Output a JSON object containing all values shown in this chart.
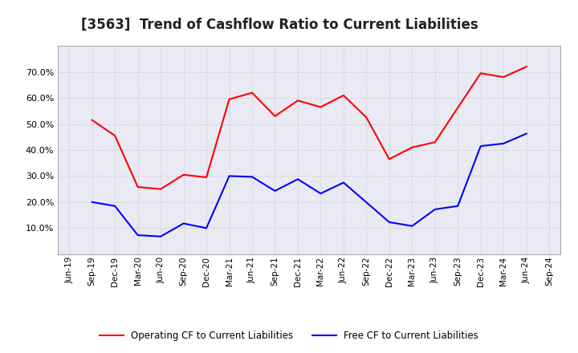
{
  "title": "[3563]  Trend of Cashflow Ratio to Current Liabilities",
  "title_fontsize": 12,
  "x_labels": [
    "Jun-19",
    "Sep-19",
    "Dec-19",
    "Mar-20",
    "Jun-20",
    "Sep-20",
    "Dec-20",
    "Mar-21",
    "Jun-21",
    "Sep-21",
    "Dec-21",
    "Mar-22",
    "Jun-22",
    "Sep-22",
    "Dec-22",
    "Mar-23",
    "Jun-23",
    "Sep-23",
    "Dec-23",
    "Mar-24",
    "Jun-24",
    "Sep-24"
  ],
  "operating_cf": [
    null,
    0.515,
    0.455,
    0.258,
    0.25,
    0.305,
    0.295,
    0.595,
    0.62,
    0.53,
    0.59,
    0.565,
    0.61,
    0.525,
    0.365,
    0.41,
    0.43,
    null,
    0.695,
    0.68,
    0.72,
    null
  ],
  "free_cf": [
    null,
    0.2,
    0.185,
    0.073,
    0.068,
    0.118,
    0.1,
    0.3,
    0.297,
    0.243,
    0.288,
    0.233,
    0.275,
    null,
    0.123,
    0.108,
    0.172,
    0.185,
    0.415,
    0.425,
    0.463,
    null
  ],
  "operating_color": "#FF0000",
  "free_color": "#0000FF",
  "ylim": [
    0.0,
    0.8
  ],
  "yticks": [
    0.1,
    0.2,
    0.3,
    0.4,
    0.5,
    0.6,
    0.7
  ],
  "background_color": "#FFFFFF",
  "plot_bg_color": "#EAEAF4",
  "grid_color": "#BBBBBB",
  "legend_operating": "Operating CF to Current Liabilities",
  "legend_free": "Free CF to Current Liabilities"
}
